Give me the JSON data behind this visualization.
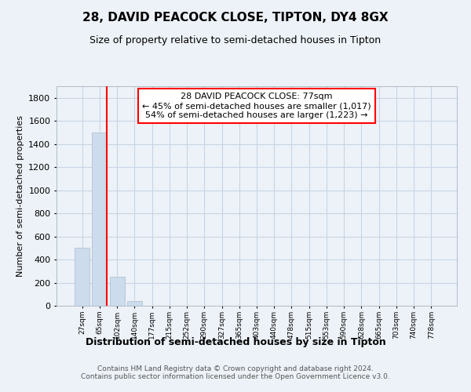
{
  "title": "28, DAVID PEACOCK CLOSE, TIPTON, DY4 8GX",
  "subtitle": "Size of property relative to semi-detached houses in Tipton",
  "xlabel": "Distribution of semi-detached houses by size in Tipton",
  "ylabel": "Number of semi-detached properties",
  "bin_labels": [
    "27sqm",
    "65sqm",
    "102sqm",
    "140sqm",
    "177sqm",
    "215sqm",
    "252sqm",
    "290sqm",
    "327sqm",
    "365sqm",
    "403sqm",
    "440sqm",
    "478sqm",
    "515sqm",
    "553sqm",
    "590sqm",
    "628sqm",
    "665sqm",
    "703sqm",
    "740sqm",
    "778sqm"
  ],
  "bar_heights": [
    500,
    1500,
    250,
    40,
    0,
    0,
    0,
    0,
    0,
    0,
    0,
    0,
    0,
    0,
    0,
    0,
    0,
    0,
    0,
    0,
    0
  ],
  "bar_color": "#ccdcec",
  "bar_edge_color": "#aabccc",
  "grid_color": "#c8d4e4",
  "background_color": "#edf2f8",
  "red_line_x": 1.43,
  "annotation_line1": "28 DAVID PEACOCK CLOSE: 77sqm",
  "annotation_line2": "← 45% of semi-detached houses are smaller (1,017)",
  "annotation_line3": "54% of semi-detached houses are larger (1,223) →",
  "annotation_box_color": "white",
  "annotation_box_edge": "red",
  "ylim": [
    0,
    1900
  ],
  "yticks": [
    0,
    200,
    400,
    600,
    800,
    1000,
    1200,
    1400,
    1600,
    1800
  ],
  "footer_line1": "Contains HM Land Registry data © Crown copyright and database right 2024.",
  "footer_line2": "Contains public sector information licensed under the Open Government Licence v3.0."
}
